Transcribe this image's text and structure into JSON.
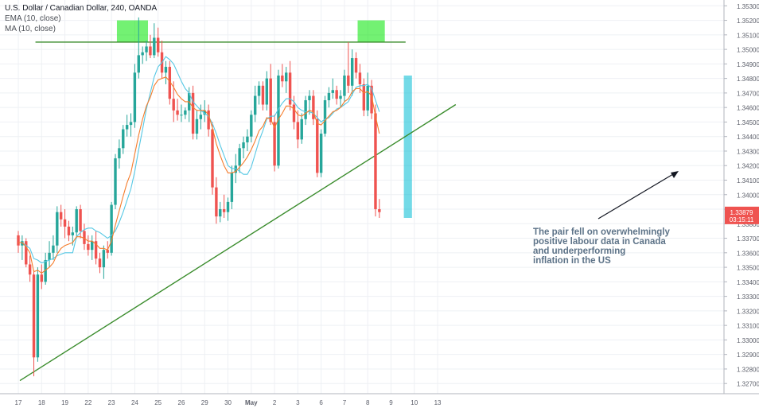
{
  "chart_data": {
    "type": "candlestick",
    "title": "U.S. Dollar / Canadian Dollar, 240, OANDA",
    "indicators": [
      "EMA (10, close)",
      "MA (10, close)"
    ],
    "y_ticks": [
      "1.35300",
      "1.35200",
      "1.35100",
      "1.35000",
      "1.34900",
      "1.34800",
      "1.34700",
      "1.34600",
      "1.34500",
      "1.34400",
      "1.34300",
      "1.34200",
      "1.34100",
      "1.34000",
      "1.33900",
      "1.33800",
      "1.33700",
      "1.33600",
      "1.33500",
      "1.33400",
      "1.33300",
      "1.33200",
      "1.33100",
      "1.33000",
      "1.32900",
      "1.32800",
      "1.32700"
    ],
    "y_tick_values": [
      1.353,
      1.352,
      1.351,
      1.35,
      1.349,
      1.348,
      1.347,
      1.346,
      1.345,
      1.344,
      1.343,
      1.342,
      1.341,
      1.34,
      1.339,
      1.338,
      1.337,
      1.336,
      1.335,
      1.334,
      1.333,
      1.332,
      1.331,
      1.33,
      1.329,
      1.328,
      1.327
    ],
    "ylim": [
      1.3263,
      1.3534
    ],
    "x_ticks": [
      "17",
      "18",
      "19",
      "22",
      "23",
      "24",
      "25",
      "26",
      "29",
      "30",
      "May",
      "2",
      "3",
      "6",
      "7",
      "8",
      "9",
      "10",
      "13"
    ],
    "x_tick_index": [
      0,
      6,
      12,
      18,
      24,
      30,
      36,
      42,
      48,
      54,
      60,
      66,
      72,
      78,
      84,
      90,
      96,
      102,
      108
    ],
    "last_price": "1.33879",
    "countdown": "03:15:11",
    "candles": [
      [
        1.3372,
        1.3375,
        1.336,
        1.3365
      ],
      [
        1.3365,
        1.3372,
        1.3355,
        1.3368
      ],
      [
        1.3368,
        1.337,
        1.335,
        1.3352
      ],
      [
        1.3352,
        1.3358,
        1.334,
        1.3345
      ],
      [
        1.3345,
        1.3348,
        1.3275,
        1.3288
      ],
      [
        1.3288,
        1.335,
        1.3285,
        1.3345
      ],
      [
        1.3345,
        1.3352,
        1.3335,
        1.334
      ],
      [
        1.334,
        1.336,
        1.3338,
        1.3355
      ],
      [
        1.3355,
        1.3368,
        1.335,
        1.336
      ],
      [
        1.336,
        1.3372,
        1.3355,
        1.3365
      ],
      [
        1.3365,
        1.3392,
        1.336,
        1.3388
      ],
      [
        1.3388,
        1.3393,
        1.3378,
        1.3383
      ],
      [
        1.3383,
        1.339,
        1.337,
        1.3378
      ],
      [
        1.3378,
        1.3382,
        1.3368,
        1.3372
      ],
      [
        1.3372,
        1.3378,
        1.3365,
        1.3374
      ],
      [
        1.3374,
        1.3392,
        1.337,
        1.339
      ],
      [
        1.339,
        1.3393,
        1.337,
        1.3375
      ],
      [
        1.3375,
        1.338,
        1.3362,
        1.3366
      ],
      [
        1.3366,
        1.3372,
        1.3358,
        1.3362
      ],
      [
        1.3362,
        1.3372,
        1.3355,
        1.3368
      ],
      [
        1.3368,
        1.3375,
        1.3352,
        1.3356
      ],
      [
        1.3356,
        1.336,
        1.3346,
        1.335
      ],
      [
        1.335,
        1.3365,
        1.3342,
        1.3362
      ],
      [
        1.3362,
        1.3368,
        1.3356,
        1.336
      ],
      [
        1.336,
        1.3395,
        1.3358,
        1.3393
      ],
      [
        1.3393,
        1.3428,
        1.339,
        1.3425
      ],
      [
        1.3425,
        1.3438,
        1.3418,
        1.3432
      ],
      [
        1.3432,
        1.3448,
        1.3428,
        1.3445
      ],
      [
        1.3445,
        1.3455,
        1.344,
        1.3448
      ],
      [
        1.3448,
        1.3456,
        1.344,
        1.345
      ],
      [
        1.345,
        1.349,
        1.3446,
        1.3484
      ],
      [
        1.3484,
        1.3522,
        1.348,
        1.3496
      ],
      [
        1.3496,
        1.3502,
        1.349,
        1.3498
      ],
      [
        1.3498,
        1.3506,
        1.3492,
        1.3502
      ],
      [
        1.3502,
        1.351,
        1.3494,
        1.3496
      ],
      [
        1.3496,
        1.3518,
        1.3494,
        1.3508
      ],
      [
        1.3508,
        1.3515,
        1.3495,
        1.3498
      ],
      [
        1.3498,
        1.3506,
        1.348,
        1.3484
      ],
      [
        1.3484,
        1.3492,
        1.3476,
        1.3488
      ],
      [
        1.3488,
        1.3492,
        1.3462,
        1.3466
      ],
      [
        1.3466,
        1.3478,
        1.345,
        1.3458
      ],
      [
        1.3458,
        1.3466,
        1.3451,
        1.3455
      ],
      [
        1.3455,
        1.3462,
        1.345,
        1.3455
      ],
      [
        1.3455,
        1.346,
        1.3452,
        1.3458
      ],
      [
        1.3458,
        1.3474,
        1.345,
        1.347
      ],
      [
        1.347,
        1.3475,
        1.3438,
        1.3442
      ],
      [
        1.3442,
        1.3458,
        1.3438,
        1.3452
      ],
      [
        1.3452,
        1.3462,
        1.3445,
        1.3455
      ],
      [
        1.3455,
        1.3465,
        1.345,
        1.3458
      ],
      [
        1.3458,
        1.3462,
        1.344,
        1.3445
      ],
      [
        1.3445,
        1.345,
        1.34,
        1.3405
      ],
      [
        1.3405,
        1.3412,
        1.338,
        1.3385
      ],
      [
        1.3385,
        1.3395,
        1.3381,
        1.339
      ],
      [
        1.339,
        1.34,
        1.3384,
        1.3388
      ],
      [
        1.3388,
        1.3398,
        1.3382,
        1.3395
      ],
      [
        1.3395,
        1.342,
        1.339,
        1.3415
      ],
      [
        1.3415,
        1.3428,
        1.3408,
        1.342
      ],
      [
        1.342,
        1.3435,
        1.3415,
        1.3432
      ],
      [
        1.3432,
        1.344,
        1.3425,
        1.3436
      ],
      [
        1.3436,
        1.3445,
        1.343,
        1.344
      ],
      [
        1.344,
        1.3458,
        1.3436,
        1.3455
      ],
      [
        1.3455,
        1.3475,
        1.345,
        1.3468
      ],
      [
        1.3468,
        1.3478,
        1.3462,
        1.3475
      ],
      [
        1.3475,
        1.3478,
        1.3458,
        1.3462
      ],
      [
        1.3462,
        1.3485,
        1.3458,
        1.348
      ],
      [
        1.348,
        1.349,
        1.3448,
        1.345
      ],
      [
        1.345,
        1.3455,
        1.3416,
        1.342
      ],
      [
        1.342,
        1.3486,
        1.3418,
        1.3482
      ],
      [
        1.3482,
        1.349,
        1.3474,
        1.3478
      ],
      [
        1.3478,
        1.3488,
        1.347,
        1.3484
      ],
      [
        1.3484,
        1.3492,
        1.3458,
        1.3462
      ],
      [
        1.3462,
        1.3468,
        1.3445,
        1.345
      ],
      [
        1.345,
        1.3458,
        1.3432,
        1.3438
      ],
      [
        1.3438,
        1.3456,
        1.3435,
        1.3452
      ],
      [
        1.3452,
        1.3468,
        1.3448,
        1.3465
      ],
      [
        1.3465,
        1.3472,
        1.3455,
        1.3468
      ],
      [
        1.3468,
        1.3472,
        1.3448,
        1.3452
      ],
      [
        1.3452,
        1.3458,
        1.3412,
        1.3415
      ],
      [
        1.3415,
        1.3445,
        1.3412,
        1.3442
      ],
      [
        1.3442,
        1.3468,
        1.344,
        1.3465
      ],
      [
        1.3465,
        1.3474,
        1.346,
        1.347
      ],
      [
        1.347,
        1.348,
        1.3466,
        1.3472
      ],
      [
        1.3472,
        1.3475,
        1.3462,
        1.3466
      ],
      [
        1.3466,
        1.3472,
        1.346,
        1.3468
      ],
      [
        1.3468,
        1.3486,
        1.3464,
        1.3482
      ],
      [
        1.3482,
        1.3505,
        1.347,
        1.3475
      ],
      [
        1.3475,
        1.35,
        1.3468,
        1.3494
      ],
      [
        1.3494,
        1.3498,
        1.348,
        1.3484
      ],
      [
        1.3484,
        1.349,
        1.347,
        1.3476
      ],
      [
        1.3476,
        1.348,
        1.3454,
        1.3458
      ],
      [
        1.3458,
        1.3484,
        1.3454,
        1.3475
      ],
      [
        1.3475,
        1.3479,
        1.3452,
        1.3456
      ],
      [
        1.3456,
        1.3462,
        1.3385,
        1.339
      ],
      [
        1.339,
        1.3397,
        1.3384,
        1.3388
      ]
    ],
    "ema": [
      1.3367,
      1.3367,
      1.3364,
      1.336,
      1.3347,
      1.3348,
      1.3346,
      1.3348,
      1.335,
      1.3353,
      1.3359,
      1.3363,
      1.3365,
      1.3366,
      1.3367,
      1.3371,
      1.3371,
      1.337,
      1.3368,
      1.3368,
      1.3366,
      1.3363,
      1.3363,
      1.3362,
      1.3368,
      1.3379,
      1.3389,
      1.3399,
      1.3408,
      1.3415,
      1.3428,
      1.3441,
      1.3452,
      1.3461,
      1.3467,
      1.3475,
      1.3479,
      1.348,
      1.3481,
      1.3478,
      1.3474,
      1.3469,
      1.3466,
      1.3464,
      1.3464,
      1.346,
      1.3458,
      1.3458,
      1.3458,
      1.3455,
      1.3446,
      1.3435,
      1.3427,
      1.342,
      1.3415,
      1.3415,
      1.3416,
      1.3419,
      1.3422,
      1.3426,
      1.3431,
      1.3437,
      1.3444,
      1.3447,
      1.3453,
      1.3452,
      1.3446,
      1.3452,
      1.3456,
      1.3461,
      1.3461,
      1.3459,
      1.3455,
      1.3454,
      1.3456,
      1.3458,
      1.3457,
      1.3449,
      1.3448,
      1.3451,
      1.3454,
      1.3457,
      1.3458,
      1.346,
      1.3464,
      1.3466,
      1.3471,
      1.3473,
      1.3473,
      1.347,
      1.3471,
      1.3468,
      1.3454,
      1.3442
    ],
    "ma": [
      1.3367,
      1.3367,
      1.3365,
      1.3363,
      1.3356,
      1.3355,
      1.3353,
      1.3354,
      1.3355,
      1.3356,
      1.3358,
      1.3359,
      1.336,
      1.336,
      1.336,
      1.3371,
      1.3374,
      1.3376,
      1.3377,
      1.3377,
      1.3375,
      1.3374,
      1.3372,
      1.337,
      1.3372,
      1.3375,
      1.3381,
      1.3388,
      1.3396,
      1.3404,
      1.3416,
      1.3431,
      1.3445,
      1.3459,
      1.347,
      1.3481,
      1.3488,
      1.3491,
      1.3495,
      1.3493,
      1.349,
      1.3484,
      1.3478,
      1.3473,
      1.347,
      1.3464,
      1.3461,
      1.3458,
      1.3456,
      1.3454,
      1.3449,
      1.3442,
      1.3434,
      1.3427,
      1.342,
      1.3418,
      1.3418,
      1.3416,
      1.3414,
      1.3414,
      1.3419,
      1.3428,
      1.3437,
      1.3444,
      1.3452,
      1.3454,
      1.3454,
      1.3459,
      1.3463,
      1.3466,
      1.3466,
      1.3464,
      1.346,
      1.3458,
      1.3457,
      1.3457,
      1.3456,
      1.3453,
      1.345,
      1.3452,
      1.3453,
      1.3456,
      1.3459,
      1.346,
      1.3462,
      1.3464,
      1.3469,
      1.3474,
      1.3475,
      1.3475,
      1.3476,
      1.3473,
      1.3465,
      1.3457
    ],
    "support_line": {
      "from": [
        0,
        1.3272
      ],
      "to": [
        110,
        1.3462
      ]
    },
    "resistance_level": 1.3505,
    "highlight_zones": [
      {
        "from_index": 29.5,
        "to_index": 37.5,
        "low": 1.3505,
        "high": 1.352,
        "color": "#00e600"
      },
      {
        "from_index": 91.5,
        "to_index": 98.5,
        "low": 1.3505,
        "high": 1.352,
        "color": "#00e600"
      },
      {
        "from_index": 103.4,
        "to_index": 105.5,
        "low": 1.3384,
        "high": 1.3482,
        "color": "#00bcd4"
      }
    ],
    "annotation": {
      "lines": [
        "The pair fell on overwhelmingly",
        "positive labour data in Canada",
        "and underperforming",
        "inflation in the US"
      ]
    },
    "colors": {
      "up": "#26a69a",
      "down": "#ef5350",
      "ema": "#f57c2b",
      "ma": "#56c8e4",
      "trend": "#3a8c2c",
      "grid": "#eef0f4",
      "axis_text": "#5d606b",
      "price_tag": "#ef5350"
    }
  }
}
